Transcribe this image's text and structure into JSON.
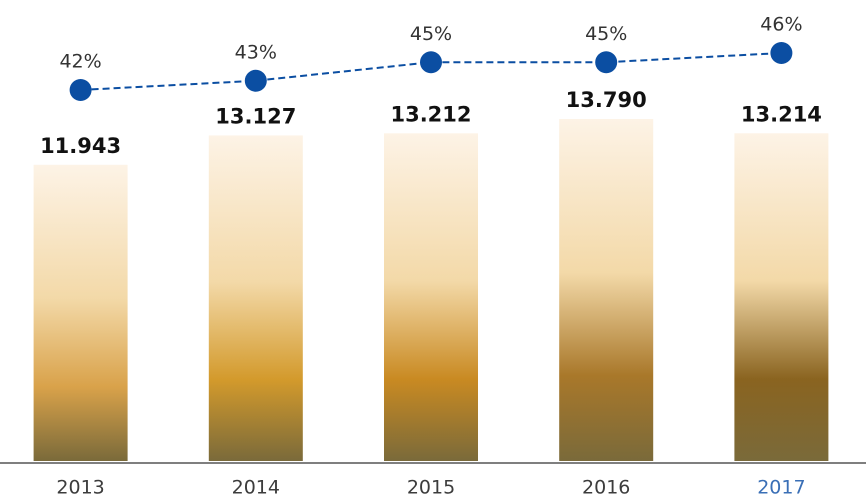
{
  "chart_data": {
    "type": "bar",
    "categories": [
      "2013",
      "2014",
      "2015",
      "2016",
      "2017"
    ],
    "category_label_colors": [
      "#3c3c3c",
      "#3c3c3c",
      "#3c3c3c",
      "#3c3c3c",
      "#3a6fb6"
    ],
    "bars": {
      "values": [
        11943,
        13127,
        13212,
        13790,
        13214
      ],
      "value_labels": [
        "11.943",
        "13.127",
        "13.212",
        "13.790",
        "13.214"
      ],
      "colors": [
        "#d9a24a",
        "#d39a2c",
        "#c98a22",
        "#a9782a",
        "#8a6420"
      ]
    },
    "line": {
      "values": [
        42,
        43,
        45,
        45,
        46
      ],
      "value_labels": [
        "42%",
        "43%",
        "45%",
        "45%",
        "46%"
      ],
      "color": "#0b4ea2",
      "dashed": true
    }
  }
}
